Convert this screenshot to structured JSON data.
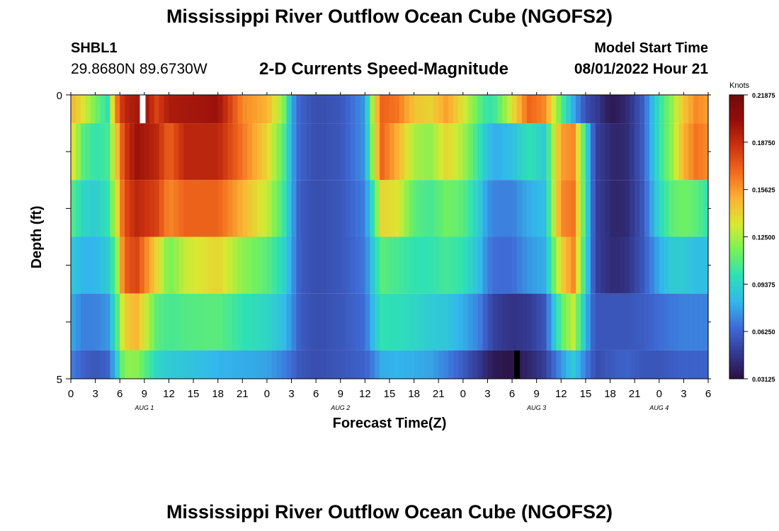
{
  "header": {
    "title": "Mississippi River Outflow Ocean Cube (NGOFS2)",
    "station_id": "SHBL1",
    "coords": "29.8680N  89.6730W",
    "subtitle": "2-D Currents Speed-Magnitude",
    "start_label": "Model Start Time",
    "start_value": "08/01/2022 Hour 21"
  },
  "footer": {
    "title": "Mississippi River Outflow Ocean Cube (NGOFS2)"
  },
  "chart_data": {
    "type": "heatmap",
    "title": "2-D Currents Speed-Magnitude",
    "xlabel": "Forecast Time(Z)",
    "ylabel": "Depth (ft)",
    "ylim": [
      0,
      5
    ],
    "y_tick_labels": [
      "0",
      "5"
    ],
    "x_tick_labels": [
      "0",
      "3",
      "6",
      "9",
      "12",
      "15",
      "18",
      "21",
      "0",
      "3",
      "6",
      "9",
      "12",
      "15",
      "18",
      "21",
      "0",
      "3",
      "6",
      "9",
      "12",
      "15",
      "18",
      "21",
      "0",
      "3",
      "6"
    ],
    "date_labels": [
      "AUG 1",
      "AUG 2",
      "AUG 3",
      "AUG 4"
    ],
    "date_label_hours": [
      9,
      33,
      57,
      72
    ],
    "x_range_hours": [
      0,
      78
    ],
    "colorbar": {
      "unit": "Knots",
      "min": 0.03125,
      "max": 0.21875,
      "ticks": [
        "0.21875",
        "0.18750",
        "0.15625",
        "0.12500",
        "0.09375",
        "0.06250",
        "0.03125"
      ]
    },
    "layers": [
      {
        "depth_top": 0,
        "depth_bottom": 0.5,
        "hours": [
          0,
          1.5,
          3,
          4.5,
          5.5,
          6.5,
          9,
          10.5,
          12,
          18,
          21,
          24,
          26,
          27,
          28,
          30,
          33,
          36,
          37,
          38,
          40,
          42,
          44,
          46,
          48,
          50,
          51,
          52,
          54,
          56,
          58,
          60,
          61.5,
          63,
          64,
          64.5,
          65.5,
          66.5,
          68,
          70,
          72,
          73.5,
          75,
          76.5,
          78
        ],
        "values": [
          0.15,
          0.135,
          0.115,
          0.1,
          0.16,
          0.19,
          0.2,
          0.18,
          0.195,
          0.2,
          0.16,
          0.15,
          0.12,
          0.08,
          0.062,
          0.055,
          0.058,
          0.075,
          0.13,
          0.17,
          0.165,
          0.145,
          0.14,
          0.155,
          0.135,
          0.11,
          0.1,
          0.105,
          0.135,
          0.17,
          0.16,
          0.11,
          0.08,
          0.056,
          0.05,
          0.048,
          0.038,
          0.035,
          0.042,
          0.06,
          0.1,
          0.12,
          0.145,
          0.16,
          0.155
        ]
      },
      {
        "depth_top": 0.5,
        "depth_bottom": 1.5,
        "hours": [
          0,
          1.5,
          3,
          4.5,
          5.5,
          6.5,
          8,
          10.5,
          12,
          14,
          18,
          21,
          24,
          26,
          27,
          28,
          30,
          33,
          36,
          37,
          38,
          40,
          42,
          44,
          46,
          48,
          50,
          51,
          52,
          54,
          56,
          58,
          60,
          61.5,
          63,
          64,
          64.5,
          65.5,
          66.5,
          68,
          70,
          72,
          73.5,
          75,
          76.5,
          78
        ],
        "values": [
          0.14,
          0.11,
          0.1,
          0.105,
          0.14,
          0.18,
          0.2,
          0.19,
          0.17,
          0.19,
          0.19,
          0.165,
          0.14,
          0.11,
          0.08,
          0.062,
          0.055,
          0.058,
          0.075,
          0.125,
          0.17,
          0.15,
          0.125,
          0.12,
          0.14,
          0.125,
          0.1,
          0.085,
          0.08,
          0.085,
          0.1,
          0.09,
          0.155,
          0.16,
          0.1,
          0.058,
          0.05,
          0.045,
          0.04,
          0.042,
          0.06,
          0.1,
          0.12,
          0.15,
          0.165,
          0.16
        ]
      },
      {
        "depth_top": 1.5,
        "depth_bottom": 2.5,
        "hours": [
          0,
          1.5,
          3,
          4.5,
          5.5,
          6.5,
          8,
          10.5,
          12,
          14,
          18,
          21,
          24,
          26,
          27,
          28,
          30,
          33,
          36,
          37,
          38,
          40,
          42,
          44,
          46,
          48,
          50,
          51,
          52,
          54,
          56,
          58,
          60,
          61.5,
          63,
          64,
          64.5,
          65.5,
          66.5,
          68,
          70,
          72,
          73.5,
          75,
          76.5,
          78
        ],
        "values": [
          0.11,
          0.095,
          0.09,
          0.1,
          0.13,
          0.175,
          0.19,
          0.18,
          0.16,
          0.17,
          0.17,
          0.15,
          0.13,
          0.105,
          0.08,
          0.06,
          0.055,
          0.058,
          0.07,
          0.1,
          0.14,
          0.135,
          0.11,
          0.105,
          0.115,
          0.11,
          0.09,
          0.075,
          0.07,
          0.07,
          0.08,
          0.085,
          0.16,
          0.165,
          0.1,
          0.058,
          0.05,
          0.045,
          0.04,
          0.042,
          0.058,
          0.095,
          0.11,
          0.115,
          0.11,
          0.1
        ]
      },
      {
        "depth_top": 2.5,
        "depth_bottom": 3.5,
        "hours": [
          0,
          1.5,
          3,
          4.5,
          5.5,
          6.5,
          8,
          10.5,
          12,
          14,
          18,
          21,
          24,
          26,
          27,
          28,
          30,
          33,
          36,
          37,
          38,
          40,
          42,
          44,
          46,
          48,
          50,
          51,
          52,
          54,
          56,
          58,
          60,
          61.5,
          63,
          64,
          64.5,
          65.5,
          66.5,
          68,
          70,
          72,
          73.5,
          75,
          76.5,
          78
        ],
        "values": [
          0.09,
          0.082,
          0.082,
          0.09,
          0.11,
          0.17,
          0.18,
          0.14,
          0.115,
          0.13,
          0.14,
          0.12,
          0.11,
          0.095,
          0.078,
          0.06,
          0.055,
          0.058,
          0.068,
          0.09,
          0.11,
          0.105,
          0.1,
          0.1,
          0.105,
          0.1,
          0.085,
          0.07,
          0.065,
          0.065,
          0.075,
          0.08,
          0.14,
          0.16,
          0.095,
          0.058,
          0.05,
          0.045,
          0.042,
          0.045,
          0.058,
          0.08,
          0.09,
          0.09,
          0.085,
          0.085
        ]
      },
      {
        "depth_top": 3.5,
        "depth_bottom": 4.5,
        "hours": [
          0,
          1.5,
          3,
          4.5,
          5.5,
          6.5,
          8,
          10.5,
          12,
          14,
          18,
          21,
          24,
          26,
          27,
          28,
          30,
          33,
          36,
          37,
          38,
          40,
          42,
          44,
          46,
          48,
          50,
          51,
          52,
          54,
          56,
          58,
          60,
          61.5,
          63,
          64,
          64.5,
          65.5,
          66.5,
          68,
          70,
          72,
          73.5,
          75,
          76.5,
          78
        ],
        "values": [
          0.08,
          0.07,
          0.07,
          0.075,
          0.1,
          0.14,
          0.15,
          0.11,
          0.105,
          0.108,
          0.11,
          0.1,
          0.095,
          0.085,
          0.075,
          0.06,
          0.055,
          0.058,
          0.065,
          0.085,
          0.1,
          0.098,
          0.095,
          0.09,
          0.088,
          0.08,
          0.07,
          0.058,
          0.05,
          0.045,
          0.048,
          0.058,
          0.11,
          0.13,
          0.085,
          0.06,
          0.058,
          0.058,
          0.058,
          0.058,
          0.06,
          0.065,
          0.068,
          0.07,
          0.07,
          0.07
        ]
      },
      {
        "depth_top": 4.5,
        "depth_bottom": 5,
        "hours": [
          0,
          1.5,
          3,
          4.5,
          5.5,
          6.5,
          8,
          10.5,
          12,
          14,
          18,
          21,
          24,
          26,
          27,
          28,
          30,
          33,
          36,
          37,
          38,
          40,
          42,
          44,
          46,
          48,
          50,
          51,
          52,
          54,
          56,
          58,
          60,
          61.5,
          63,
          64,
          64.5,
          65.5,
          66.5,
          68,
          70,
          72,
          73.5,
          75,
          76.5,
          78
        ],
        "values": [
          0.07,
          0.062,
          0.058,
          0.062,
          0.085,
          0.12,
          0.12,
          0.095,
          0.09,
          0.088,
          0.082,
          0.08,
          0.078,
          0.07,
          0.065,
          0.058,
          0.055,
          0.058,
          0.062,
          0.07,
          0.08,
          0.082,
          0.08,
          0.078,
          0.07,
          0.06,
          0.048,
          0.04,
          0.035,
          0.033,
          0.04,
          0.05,
          0.075,
          0.09,
          0.07,
          0.058,
          0.055,
          0.058,
          0.06,
          0.062,
          0.058,
          0.058,
          0.06,
          0.062,
          0.062,
          0.062
        ]
      }
    ],
    "missing_cells": [
      {
        "hour": 8.8,
        "depth_top": 0,
        "depth_bottom": 0.5,
        "color": "#ffffff"
      },
      {
        "hour": 54.6,
        "depth_top": 4.5,
        "depth_bottom": 5,
        "color": "#000000"
      }
    ],
    "palette": [
      "#2b1040",
      "#343a92",
      "#3f6cd8",
      "#32b8ec",
      "#2ee1b4",
      "#78f256",
      "#d9e931",
      "#fdb133",
      "#f26a1d",
      "#cc3310",
      "#960d0a",
      "#6e0a0a"
    ]
  }
}
